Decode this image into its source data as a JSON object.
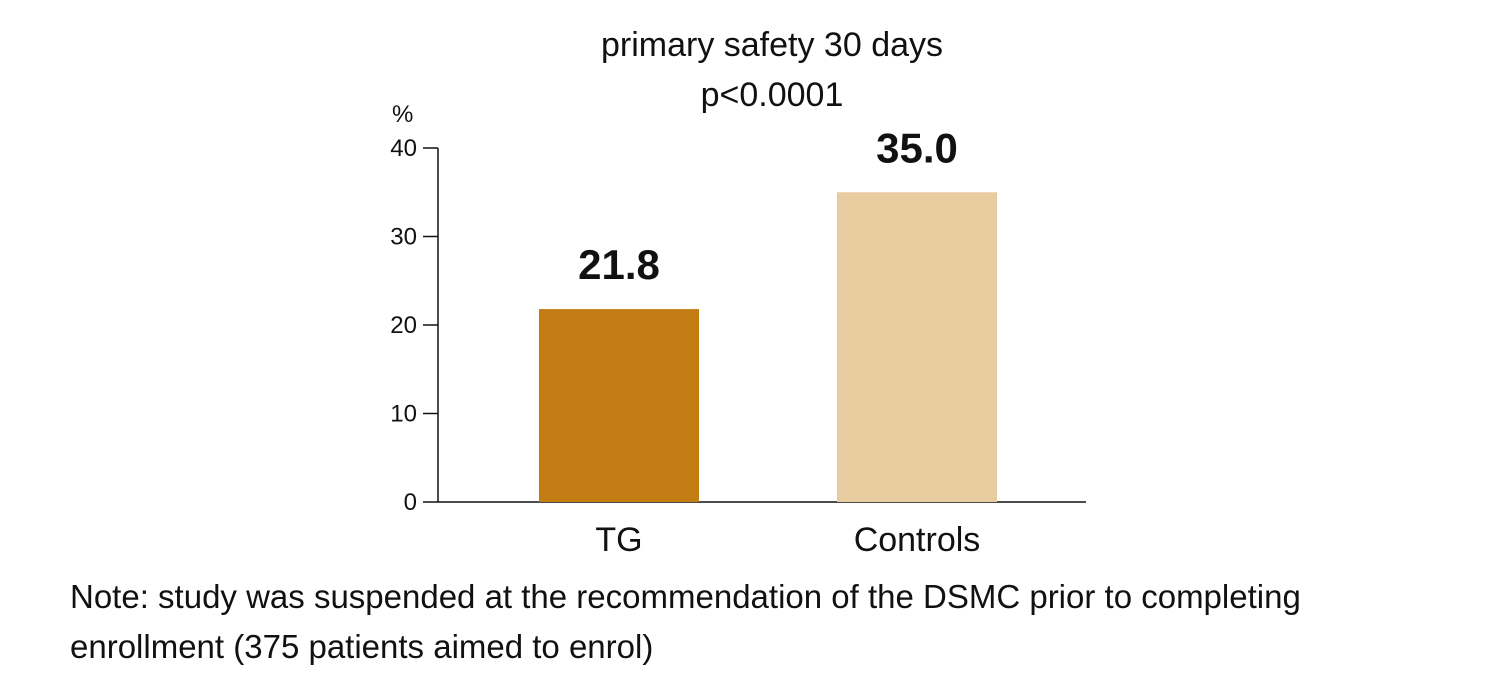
{
  "chart_data": {
    "type": "bar",
    "title": "primary safety 30 days",
    "subtitle": "p<0.0001",
    "ylabel": "%",
    "xlabel": "",
    "ylim": [
      0,
      40
    ],
    "yticks": [
      "0",
      "10",
      "20",
      "30",
      "40"
    ],
    "categories": [
      "TG",
      "Controls"
    ],
    "values": [
      21.8,
      35.0
    ],
    "value_labels": [
      "21.8",
      "35.0"
    ],
    "colors": [
      "#c47c15",
      "#e8cca0"
    ],
    "grid": false,
    "legend": "none"
  },
  "note": {
    "line1": "Note: study was suspended at the recommendation of the DSMC prior to completing",
    "line2": "enrollment (375 patients aimed to enrol)"
  }
}
